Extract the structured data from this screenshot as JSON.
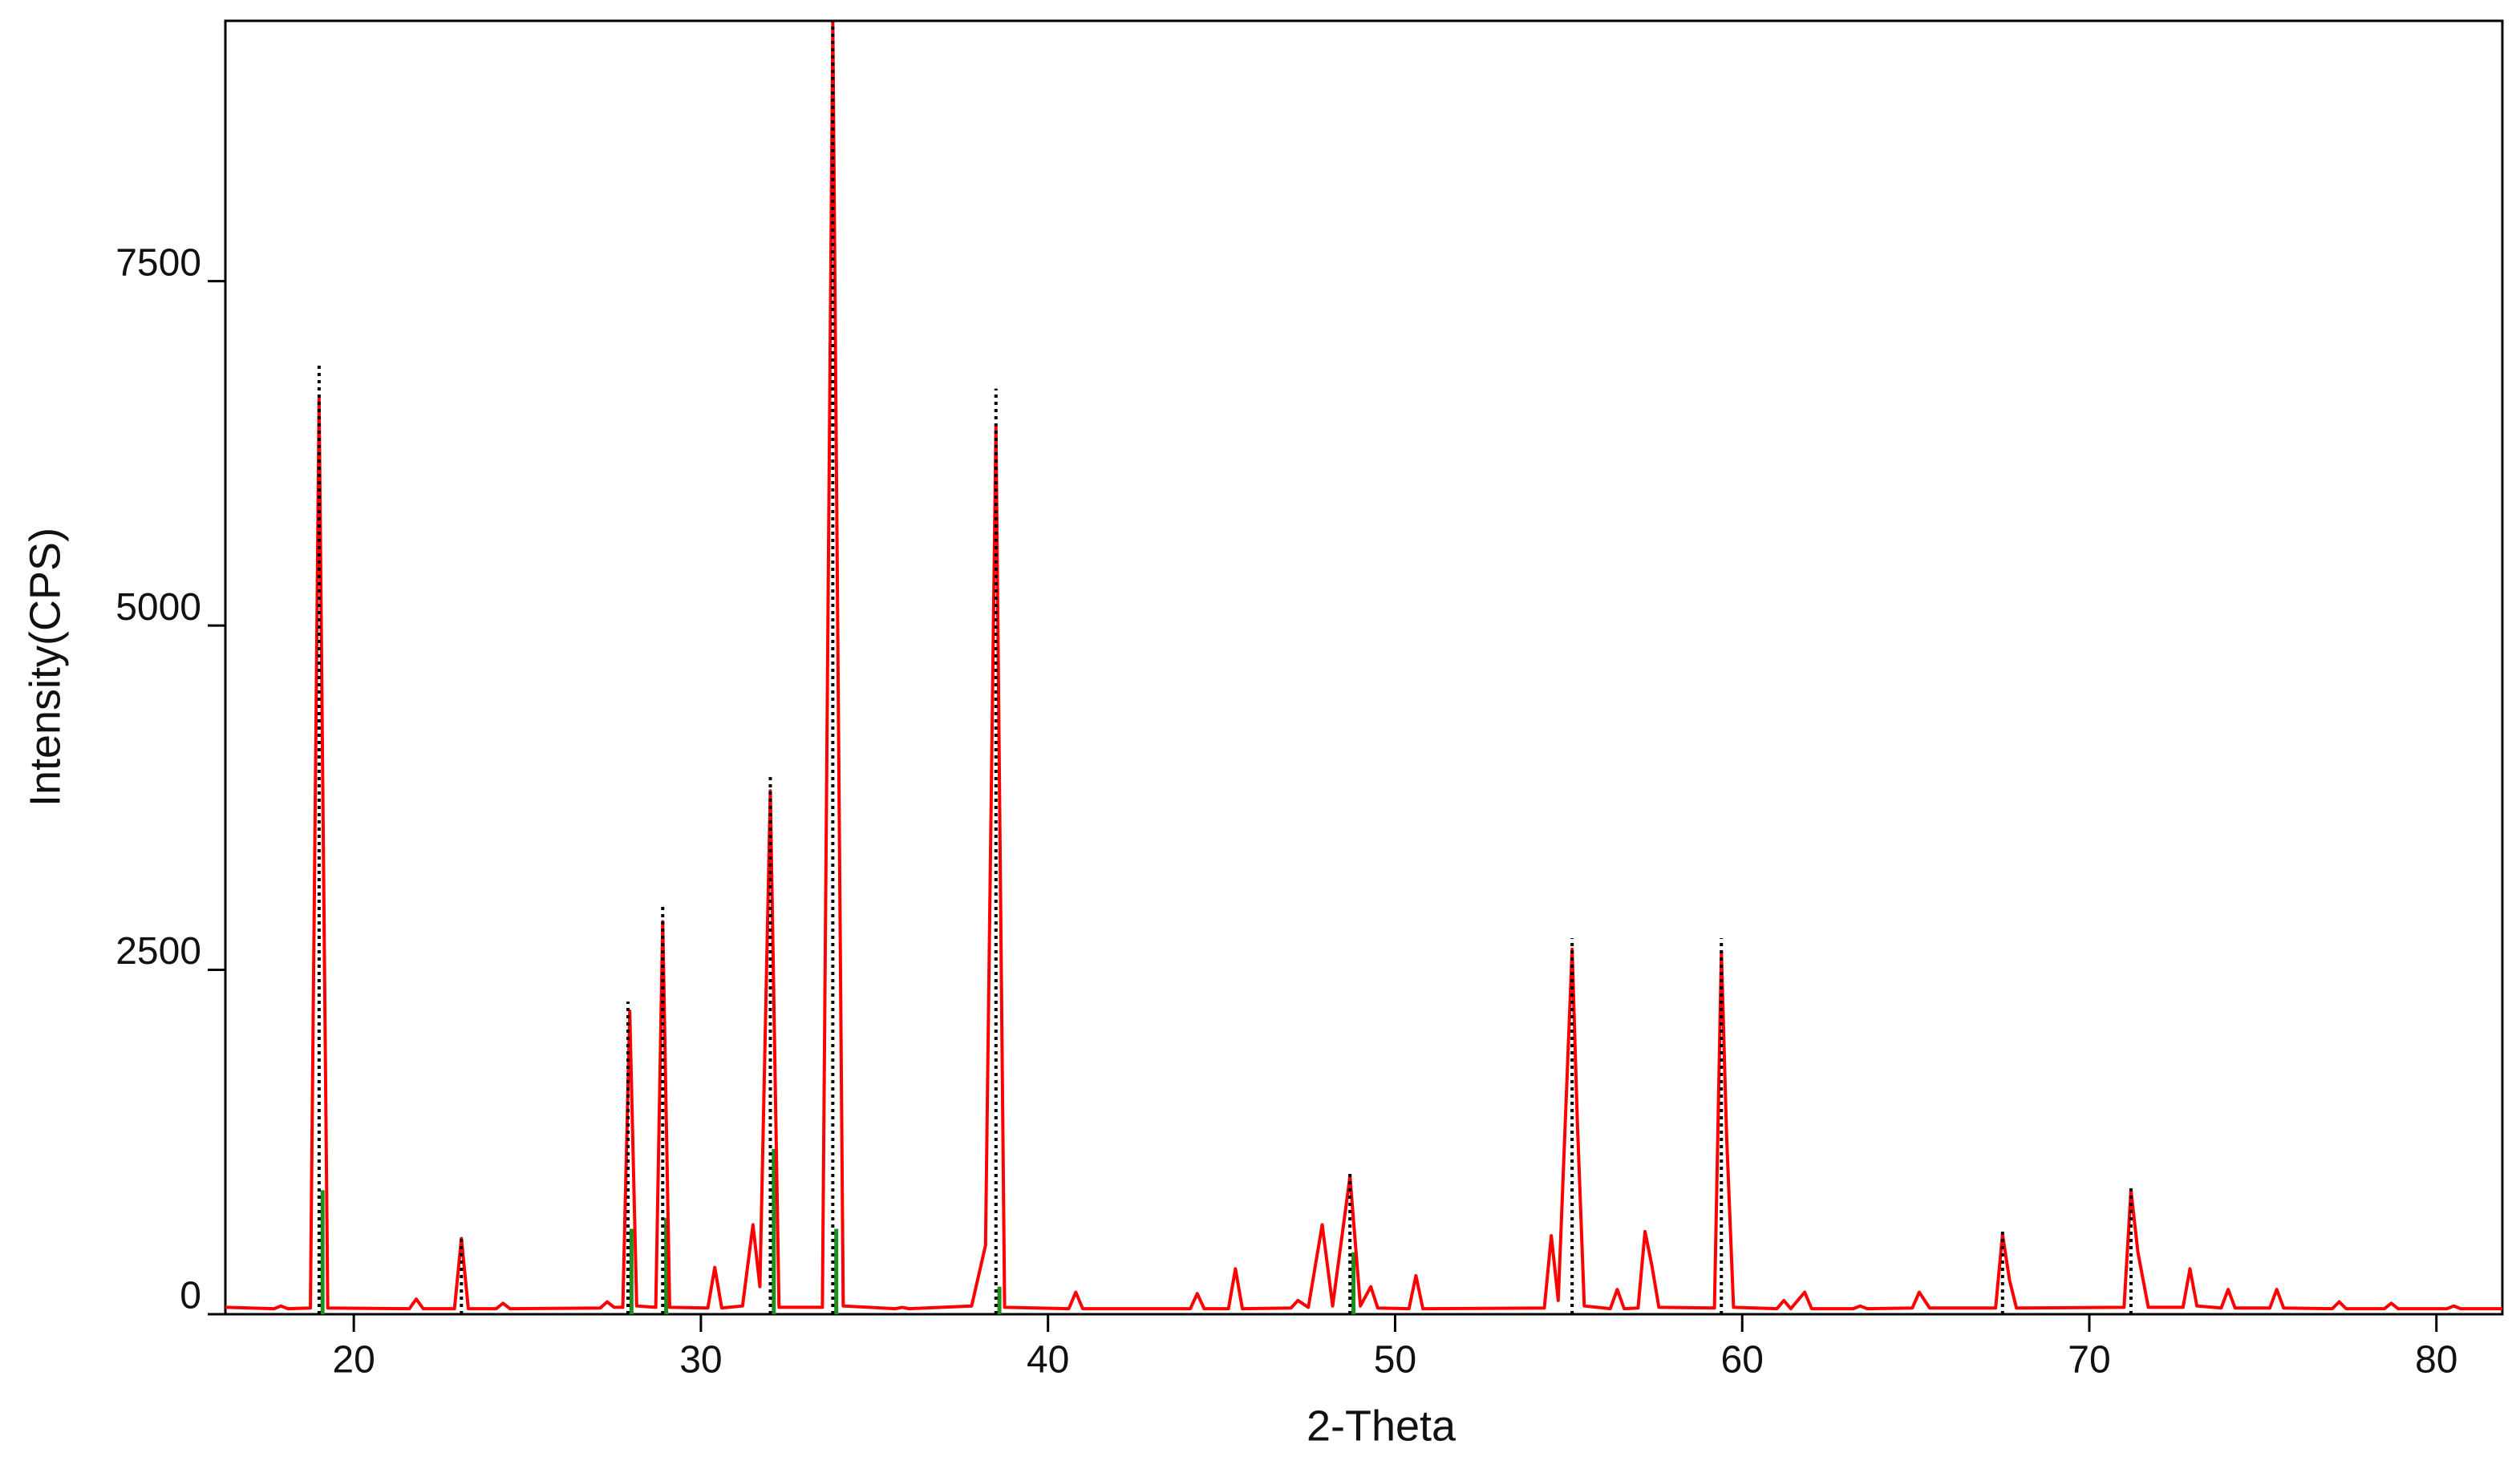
{
  "chart_data": {
    "type": "line",
    "xlabel": "2-Theta",
    "ylabel": "Intensity(CPS)",
    "xlim": [
      16.3,
      81.9
    ],
    "ylim": [
      0,
      9390
    ],
    "xticks": [
      20,
      30,
      40,
      50,
      60,
      70,
      80
    ],
    "yticks": [
      0,
      2500,
      5000,
      7500
    ],
    "series": [
      {
        "color": "#ff0000",
        "style": "line",
        "x": [
          16.3,
          17.7,
          17.9,
          18.1,
          18.75,
          19.0,
          19.25,
          21.6,
          21.8,
          22.0,
          22.9,
          23.1,
          23.3,
          24.1,
          24.3,
          24.5,
          27.1,
          27.3,
          27.5,
          27.75,
          27.95,
          28.15,
          28.7,
          28.9,
          29.1,
          30.2,
          30.4,
          30.6,
          31.2,
          31.5,
          31.7,
          32.0,
          32.25,
          33.5,
          33.8,
          34.1,
          35.6,
          35.8,
          36.0,
          37.8,
          38.2,
          38.5,
          38.75,
          40.6,
          40.8,
          41.0,
          44.1,
          44.3,
          44.5,
          45.2,
          45.4,
          45.6,
          47.0,
          47.2,
          47.5,
          47.9,
          48.2,
          48.7,
          49.0,
          49.3,
          49.5,
          50.4,
          50.6,
          50.8,
          54.3,
          54.5,
          54.7,
          55.1,
          55.25,
          55.45,
          56.2,
          56.4,
          56.6,
          57.0,
          57.2,
          57.4,
          57.6,
          59.2,
          59.4,
          59.55,
          59.75,
          61.0,
          61.2,
          61.4,
          61.8,
          62.0,
          63.2,
          63.4,
          63.6,
          64.9,
          65.1,
          65.4,
          67.3,
          67.5,
          67.7,
          67.9,
          71.0,
          71.2,
          71.4,
          71.7,
          72.7,
          72.9,
          73.1,
          73.8,
          74.0,
          74.2,
          75.2,
          75.4,
          75.6,
          77.0,
          77.2,
          77.4,
          78.5,
          78.7,
          78.9,
          80.3,
          80.5,
          80.7,
          81.9
        ],
        "values": [
          50,
          40,
          60,
          40,
          45,
          6650,
          45,
          40,
          110,
          40,
          40,
          550,
          40,
          40,
          80,
          40,
          45,
          90,
          50,
          50,
          2200,
          60,
          50,
          2850,
          50,
          45,
          340,
          45,
          60,
          650,
          200,
          3800,
          50,
          50,
          9390,
          60,
          40,
          50,
          40,
          60,
          500,
          6450,
          50,
          40,
          160,
          40,
          40,
          150,
          40,
          40,
          330,
          40,
          45,
          100,
          50,
          650,
          60,
          1000,
          60,
          200,
          45,
          40,
          280,
          40,
          45,
          570,
          100,
          2650,
          1400,
          60,
          40,
          180,
          40,
          45,
          600,
          350,
          50,
          45,
          2630,
          1300,
          50,
          40,
          100,
          40,
          160,
          40,
          40,
          60,
          40,
          45,
          160,
          45,
          45,
          580,
          250,
          45,
          50,
          900,
          450,
          50,
          50,
          330,
          60,
          45,
          180,
          45,
          45,
          180,
          45,
          40,
          90,
          40,
          40,
          80,
          40,
          40,
          60,
          40,
          40
        ]
      },
      {
        "color": "#000000",
        "style": "stick-dotted",
        "x": [
          19.0,
          23.1,
          27.9,
          28.9,
          32.0,
          33.8,
          38.5,
          48.7,
          55.1,
          59.4,
          67.5,
          71.2
        ],
        "values": [
          6900,
          560,
          2270,
          2960,
          3900,
          9390,
          6720,
          1020,
          2730,
          2730,
          600,
          920
        ]
      },
      {
        "color": "#1f8f1f",
        "style": "stick",
        "x": [
          19.1,
          28.0,
          29.0,
          32.1,
          33.9,
          38.6,
          48.8
        ],
        "values": [
          900,
          620,
          700,
          1200,
          620,
          200,
          450
        ]
      }
    ]
  }
}
